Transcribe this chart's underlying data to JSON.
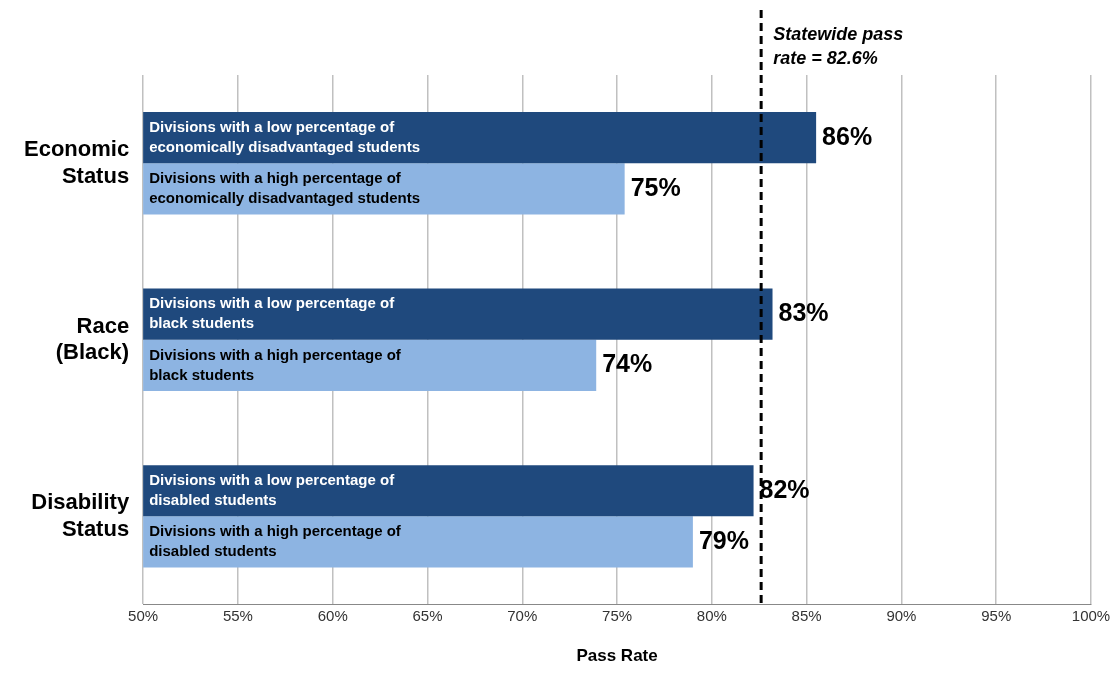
{
  "chart_data": {
    "type": "bar",
    "orientation": "horizontal",
    "categories": [
      "Economic Status",
      "Race (Black)",
      "Disability Status"
    ],
    "series": [
      {
        "color": "#1f497d",
        "values": [
          85.5,
          83.2,
          82.2
        ],
        "value_labels": [
          "86%",
          "83%",
          "82%"
        ]
      },
      {
        "color": "#8db4e2",
        "values": [
          75.4,
          73.9,
          79.0
        ],
        "value_labels": [
          "75%",
          "74%",
          "79%"
        ]
      }
    ],
    "xlim": [
      50,
      100
    ],
    "xticks": [
      {
        "value": 50,
        "label": "50%"
      },
      {
        "value": 55,
        "label": "55%"
      },
      {
        "value": 60,
        "label": "60%"
      },
      {
        "value": 65,
        "label": "65%"
      },
      {
        "value": 70,
        "label": "70%"
      },
      {
        "value": 75,
        "label": "75%"
      },
      {
        "value": 80,
        "label": "80%"
      },
      {
        "value": 85,
        "label": "85%"
      },
      {
        "value": 90,
        "label": "90%"
      },
      {
        "value": 95,
        "label": "95%"
      },
      {
        "value": 100,
        "label": "100%"
      }
    ],
    "xlabel": "Pass Rate",
    "grid": "x",
    "legend": false,
    "ref_lines": [
      {
        "axis": "x",
        "value": 82.6,
        "label": "Statewide pass rate = 82.6%",
        "color": "#000000",
        "line_style": "dashed"
      }
    ],
    "annotations": [
      "Divisions with a low percentage of economically disadvantaged students",
      "Divisions with a high percentage of economically disadvantaged students",
      "Divisions with a low percentage of black students",
      "Divisions with a high percentage of black students",
      "Divisions with a low percentage of disabled students",
      "Divisions with a high percentage of disabled students"
    ]
  }
}
